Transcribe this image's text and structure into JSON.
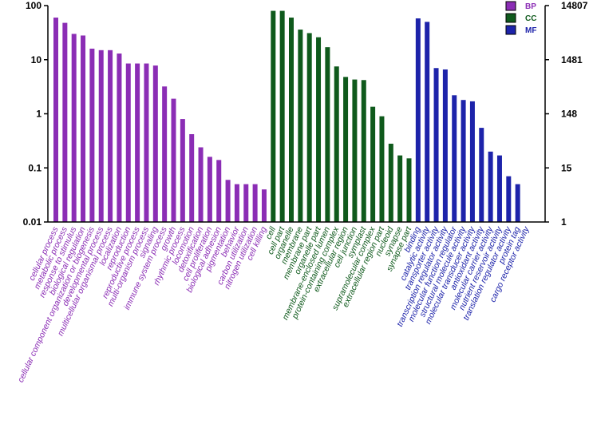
{
  "chart_data": {
    "type": "bar",
    "y_scale": "log",
    "ylim": [
      0.01,
      100
    ],
    "y_ticks_left": [
      "0.01",
      "0.1",
      "1",
      "10",
      "100"
    ],
    "y_ticks_right": [
      "1",
      "15",
      "148",
      "1481",
      "14807"
    ],
    "grid": false,
    "legend_position": "top-right",
    "colors": {
      "BP": "#8b2db5",
      "CC": "#0f5a1c",
      "MF": "#1d23aa"
    },
    "series": [
      {
        "name": "BP",
        "categories": [
          "cellular process",
          "metabolic process",
          "response to stimulus",
          "biological regulation",
          "cellular component organization or biogenesis",
          "developmental process",
          "multicellular organismal process",
          "localization",
          "reproduction",
          "reproductive process",
          "multi-organism process",
          "signaling",
          "immune system process",
          "growth",
          "rhythmic process",
          "locomotion",
          "detoxification",
          "cell proliferation",
          "biological adhesion",
          "pigmentation",
          "behavior",
          "carbon utilization",
          "nitrogen utilization",
          "cell killing"
        ],
        "values": [
          60,
          48,
          30,
          28,
          16,
          15,
          15,
          13,
          8.5,
          8.5,
          8.5,
          7.8,
          3.2,
          1.9,
          0.8,
          0.42,
          0.24,
          0.16,
          0.14,
          0.06,
          0.05,
          0.05,
          0.05,
          0.04
        ]
      },
      {
        "name": "CC",
        "categories": [
          "cell",
          "cell part",
          "organelle",
          "membrane",
          "membrane part",
          "organelle part",
          "membrane-enclosed lumen",
          "protein-containing complex",
          "extracellular region",
          "cell junction",
          "symplast",
          "supramolecular complex",
          "extracellular region part",
          "nucleoid",
          "synapse",
          "synapse part"
        ],
        "values": [
          80,
          80,
          60,
          36,
          31,
          26,
          17,
          7.5,
          4.8,
          4.3,
          4.2,
          1.35,
          0.9,
          0.28,
          0.17,
          0.15
        ]
      },
      {
        "name": "MF",
        "categories": [
          "binding",
          "catalytic activity",
          "transporter activity",
          "transcription regulator activity",
          "molecular function regulator",
          "structural molecule activity",
          "molecular transducer activity",
          "antioxidant activity",
          "molecular carrier activity",
          "nutrient reservoir activity",
          "translation regulator activity",
          "protein tag",
          "cargo receptor activity"
        ],
        "values": [
          58,
          50,
          7.0,
          6.6,
          2.2,
          1.8,
          1.7,
          0.55,
          0.2,
          0.17,
          0.07,
          0.05,
          0.01
        ]
      }
    ]
  }
}
